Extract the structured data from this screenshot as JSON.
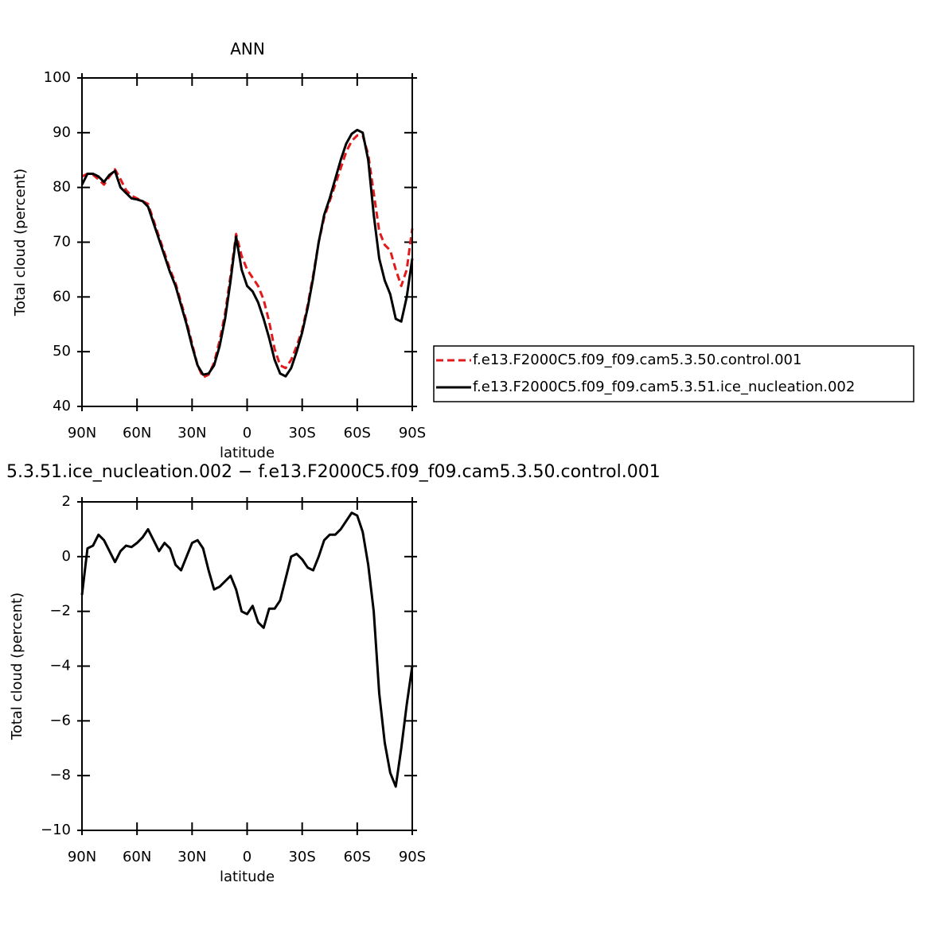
{
  "chart_data": [
    {
      "type": "line",
      "title": "ANN",
      "xlabel": "latitude",
      "ylabel": "Total cloud (percent)",
      "x": [
        90,
        87,
        84,
        81,
        78,
        75,
        72,
        69,
        66,
        63,
        60,
        57,
        54,
        51,
        48,
        45,
        42,
        39,
        36,
        33,
        30,
        27,
        24,
        21,
        18,
        15,
        12,
        9,
        6,
        3,
        0,
        -3,
        -6,
        -9,
        -12,
        -15,
        -18,
        -21,
        -24,
        -27,
        -30,
        -33,
        -36,
        -39,
        -42,
        -45,
        -48,
        -51,
        -54,
        -57,
        -60,
        -63,
        -66,
        -69,
        -72,
        -75,
        -78,
        -81,
        -84,
        -87,
        -90
      ],
      "xlim": [
        90,
        -90
      ],
      "xticks": [
        {
          "value": 90,
          "label": "90N"
        },
        {
          "value": 60,
          "label": "60N"
        },
        {
          "value": 30,
          "label": "30N"
        },
        0,
        {
          "value": -30,
          "label": "30S"
        },
        {
          "value": -60,
          "label": "60S"
        },
        {
          "value": -90,
          "label": "90S"
        }
      ],
      "ylim": [
        40,
        100
      ],
      "yticks": [
        40,
        50,
        60,
        70,
        80,
        90,
        100
      ],
      "legend": "right",
      "series": [
        {
          "name": "f.e13.F2000C5.f09_f09.cam5.3.50.control.001",
          "color": "#e31a1c",
          "style": "dashed",
          "values": [
            82,
            82.5,
            82.3,
            81.5,
            80.5,
            82,
            83.3,
            81.5,
            79.5,
            78.5,
            78,
            77.5,
            77,
            74,
            71,
            68,
            65,
            62.5,
            59,
            55.5,
            51.5,
            47.5,
            45.3,
            45.8,
            48,
            52,
            57,
            64,
            71.5,
            67.5,
            65,
            63.5,
            62,
            59.5,
            55.5,
            50.5,
            47.5,
            47,
            48.5,
            51,
            54,
            58.5,
            64,
            70,
            74.5,
            77.5,
            80.5,
            83.5,
            86.5,
            88.5,
            89.5,
            89.5,
            86,
            79,
            72,
            69.5,
            68.5,
            65,
            62,
            65,
            72.5
          ]
        },
        {
          "name": "f.e13.F2000C5.f09_f09.cam5.3.51.ice_nucleation.002",
          "color": "#000000",
          "style": "solid",
          "values": [
            80.5,
            82.5,
            82.5,
            82,
            81,
            82.3,
            83,
            80,
            79,
            78,
            77.8,
            77.5,
            76.5,
            73.5,
            70.5,
            67.5,
            64.5,
            62,
            58.5,
            55,
            51,
            47.5,
            45.8,
            46,
            47.5,
            51,
            56,
            63,
            71,
            65,
            62,
            61,
            59,
            56,
            52.5,
            48.5,
            46,
            45.5,
            47,
            50,
            53.5,
            58,
            63.5,
            70,
            75,
            78,
            81.5,
            85,
            88,
            89.8,
            90.5,
            90,
            85,
            75,
            67,
            63,
            60.5,
            56,
            55.5,
            60,
            67
          ]
        }
      ]
    },
    {
      "type": "line",
      "title": "5.3.51.ice_nucleation.002 − f.e13.F2000C5.f09_f09.cam5.3.50.control.001",
      "xlabel": "latitude",
      "ylabel": "Total cloud (percent)",
      "x": [
        90,
        87,
        84,
        81,
        78,
        75,
        72,
        69,
        66,
        63,
        60,
        57,
        54,
        51,
        48,
        45,
        42,
        39,
        36,
        33,
        30,
        27,
        24,
        21,
        18,
        15,
        12,
        9,
        6,
        3,
        0,
        -3,
        -6,
        -9,
        -12,
        -15,
        -18,
        -21,
        -24,
        -27,
        -30,
        -33,
        -36,
        -39,
        -42,
        -45,
        -48,
        -51,
        -54,
        -57,
        -60,
        -63,
        -66,
        -69,
        -72,
        -75,
        -78,
        -81,
        -84,
        -87,
        -90
      ],
      "xlim": [
        90,
        -90
      ],
      "xticks": [
        {
          "value": 90,
          "label": "90N"
        },
        {
          "value": 60,
          "label": "60N"
        },
        {
          "value": 30,
          "label": "30N"
        },
        0,
        {
          "value": -30,
          "label": "30S"
        },
        {
          "value": -60,
          "label": "60S"
        },
        {
          "value": -90,
          "label": "90S"
        }
      ],
      "ylim": [
        -10,
        2
      ],
      "yticks": [
        {
          "value": -10,
          "label": "−10"
        },
        {
          "value": -8,
          "label": "−8"
        },
        {
          "value": -6,
          "label": "−6"
        },
        {
          "value": -4,
          "label": "−4"
        },
        {
          "value": -2,
          "label": "−2"
        },
        0,
        2
      ],
      "series": [
        {
          "color": "#000000",
          "style": "solid",
          "values": [
            -1.4,
            0.3,
            0.4,
            0.8,
            0.6,
            0.2,
            -0.2,
            0.2,
            0.4,
            0.35,
            0.5,
            0.7,
            1.0,
            0.6,
            0.2,
            0.5,
            0.3,
            -0.3,
            -0.5,
            0.0,
            0.5,
            0.6,
            0.3,
            -0.5,
            -1.2,
            -1.1,
            -0.9,
            -0.7,
            -1.2,
            -2.0,
            -2.1,
            -1.8,
            -2.4,
            -2.6,
            -1.9,
            -1.9,
            -1.6,
            -0.8,
            0.0,
            0.1,
            -0.1,
            -0.4,
            -0.5,
            0.0,
            0.6,
            0.8,
            0.8,
            1.0,
            1.3,
            1.6,
            1.5,
            0.9,
            -0.3,
            -2.0,
            -5.0,
            -6.8,
            -7.9,
            -8.4,
            -7.0,
            -5.4,
            -4.0
          ]
        }
      ]
    }
  ]
}
